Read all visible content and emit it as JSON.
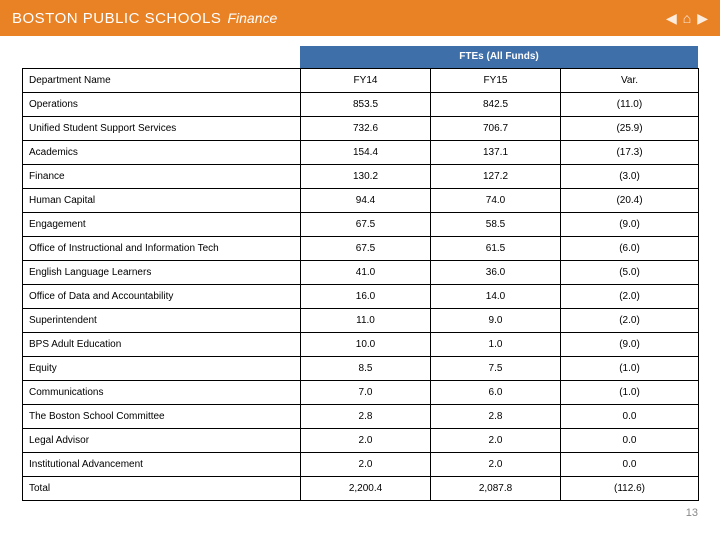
{
  "colors": {
    "header_bg": "#e98125",
    "ftes_header_bg": "#3f6fa8",
    "text": "#000000",
    "page_num": "#888888"
  },
  "header": {
    "title": "BOSTON PUBLIC SCHOOLS",
    "section": "Finance"
  },
  "nav": {
    "prev": "◀",
    "home": "⌂",
    "next": "▶"
  },
  "table": {
    "group_header": "FTEs (All Funds)",
    "columns": {
      "dept": "Department Name",
      "c1": "FY14",
      "c2": "FY15",
      "c3": "Var."
    },
    "rows": [
      {
        "dept": "Operations",
        "c1": "853.5",
        "c2": "842.5",
        "c3": "(11.0)"
      },
      {
        "dept": "Unified Student Support Services",
        "c1": "732.6",
        "c2": "706.7",
        "c3": "(25.9)"
      },
      {
        "dept": "Academics",
        "c1": "154.4",
        "c2": "137.1",
        "c3": "(17.3)"
      },
      {
        "dept": "Finance",
        "c1": "130.2",
        "c2": "127.2",
        "c3": "(3.0)"
      },
      {
        "dept": "Human Capital",
        "c1": "94.4",
        "c2": "74.0",
        "c3": "(20.4)"
      },
      {
        "dept": "Engagement",
        "c1": "67.5",
        "c2": "58.5",
        "c3": "(9.0)"
      },
      {
        "dept": "Office of Instructional and Information Tech",
        "c1": "67.5",
        "c2": "61.5",
        "c3": "(6.0)"
      },
      {
        "dept": "English Language Learners",
        "c1": "41.0",
        "c2": "36.0",
        "c3": "(5.0)"
      },
      {
        "dept": "Office of Data and Accountability",
        "c1": "16.0",
        "c2": "14.0",
        "c3": "(2.0)"
      },
      {
        "dept": "Superintendent",
        "c1": "11.0",
        "c2": "9.0",
        "c3": "(2.0)"
      },
      {
        "dept": "BPS Adult Education",
        "c1": "10.0",
        "c2": "1.0",
        "c3": "(9.0)"
      },
      {
        "dept": "Equity",
        "c1": "8.5",
        "c2": "7.5",
        "c3": "(1.0)"
      },
      {
        "dept": "Communications",
        "c1": "7.0",
        "c2": "6.0",
        "c3": "(1.0)"
      },
      {
        "dept": "The Boston School Committee",
        "c1": "2.8",
        "c2": "2.8",
        "c3": "0.0"
      },
      {
        "dept": "Legal Advisor",
        "c1": "2.0",
        "c2": "2.0",
        "c3": "0.0"
      },
      {
        "dept": "Institutional Advancement",
        "c1": "2.0",
        "c2": "2.0",
        "c3": "0.0"
      },
      {
        "dept": "Total",
        "c1": "2,200.4",
        "c2": "2,087.8",
        "c3": "(112.6)"
      }
    ]
  },
  "page_number": "13"
}
